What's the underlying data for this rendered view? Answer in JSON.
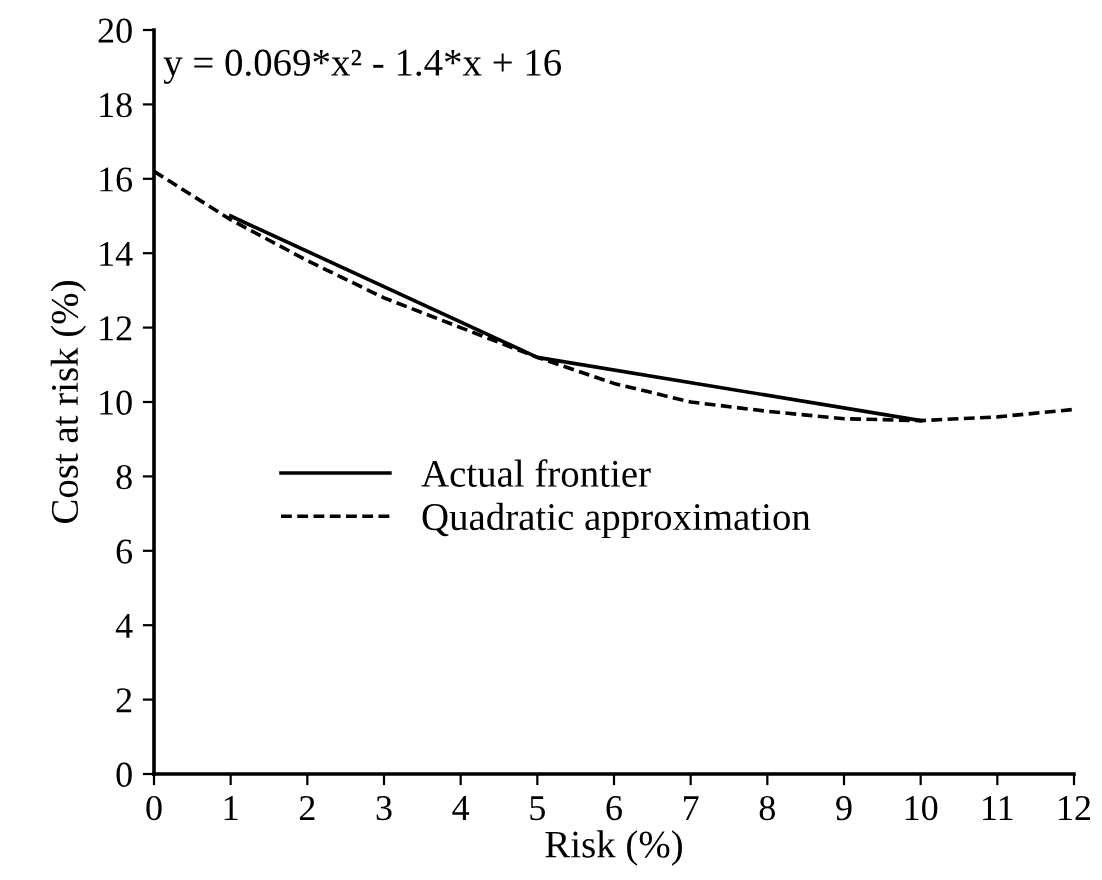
{
  "chart_data": {
    "type": "line",
    "xlabel": "Risk (%)",
    "ylabel": "Cost at risk (%)",
    "series": [
      {
        "name": "Actual frontier",
        "color": "#000000",
        "line_style": "solid",
        "x": [
          1,
          5,
          10
        ],
        "values": [
          15.0,
          11.2,
          9.5
        ]
      },
      {
        "name": "Quadratic approximation",
        "color": "#000000",
        "line_style": "dashed",
        "x": [
          0,
          1,
          2,
          3,
          4,
          5,
          6,
          7,
          8,
          9,
          10,
          11,
          12
        ],
        "values": [
          16.2,
          14.9,
          13.8,
          12.8,
          12.0,
          11.2,
          10.5,
          10.0,
          9.75,
          9.55,
          9.5,
          9.6,
          9.8
        ]
      }
    ],
    "xlim": [
      0,
      12
    ],
    "xticks": [
      0,
      1,
      2,
      3,
      4,
      5,
      6,
      7,
      8,
      9,
      10,
      11,
      12
    ],
    "ylim": [
      0,
      20
    ],
    "yticks": [
      0,
      2,
      4,
      6,
      8,
      10,
      12,
      14,
      16,
      18,
      20
    ],
    "annotations": [
      "y = 0.069*x² - 1.4*x + 16"
    ],
    "legend": "center left",
    "grid": false,
    "marker": "none"
  }
}
